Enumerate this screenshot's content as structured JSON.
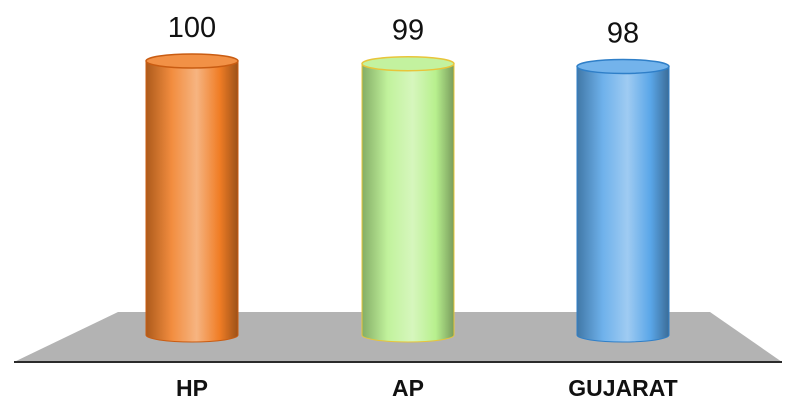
{
  "chart_data": {
    "type": "bar",
    "style": "3d-cylinder",
    "categories": [
      "HP",
      "AP",
      "GUJARAT"
    ],
    "values": [
      100,
      99,
      98
    ],
    "data_labels": [
      "100",
      "99",
      "98"
    ],
    "colors": [
      "#f07d25",
      "#b8f08e",
      "#5aa6e8"
    ],
    "edge_colors": [
      "#c95c12",
      "#e8c53a",
      "#2f7fc8"
    ],
    "floor_color": "#b3b3b3",
    "title": "",
    "xlabel": "",
    "ylabel": "",
    "ylim": [
      0,
      100
    ],
    "grid": false,
    "legend": "none"
  }
}
